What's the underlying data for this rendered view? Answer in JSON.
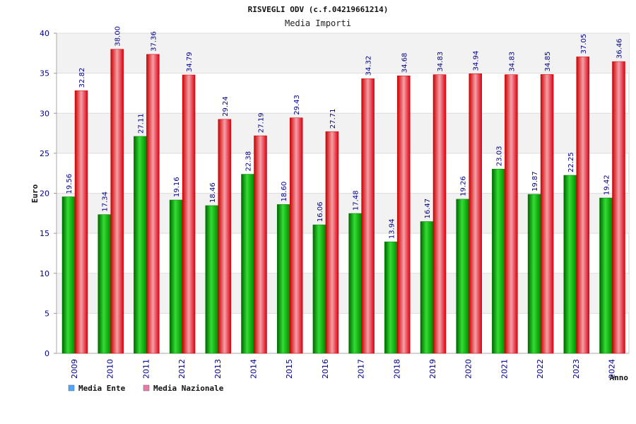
{
  "chart_data": {
    "type": "bar",
    "title": "RISVEGLI ODV (c.f.04219661214)",
    "subtitle": "Media Importi",
    "xlabel": "Anno",
    "ylabel": "Euro",
    "ylim": [
      0,
      40
    ],
    "yticks": [
      0,
      5,
      10,
      15,
      20,
      25,
      30,
      35,
      40
    ],
    "grid": true,
    "legend_position": "bottom-left",
    "categories": [
      "2009",
      "2010",
      "2011",
      "2012",
      "2013",
      "2014",
      "2015",
      "2016",
      "2017",
      "2018",
      "2019",
      "2020",
      "2021",
      "2022",
      "2023",
      "2024"
    ],
    "series": [
      {
        "name": "Media Ente",
        "color": "#00cc00",
        "legend_color": "#4da6ff",
        "values": [
          19.56,
          17.34,
          27.11,
          19.16,
          18.46,
          22.38,
          18.6,
          16.06,
          17.48,
          13.94,
          16.47,
          19.26,
          23.03,
          19.87,
          22.25,
          19.42
        ],
        "labels": [
          "19.56",
          "17.34",
          "27.11",
          "19.16",
          "18.46",
          "22.38",
          "18.60",
          "16.06",
          "17.48",
          "13.94",
          "16.47",
          "19.26",
          "23.03",
          "19.87",
          "22.25",
          "19.42"
        ]
      },
      {
        "name": "Media Nazionale",
        "color": "#ee1111",
        "legend_color": "#e87aa8",
        "values": [
          32.82,
          38.0,
          37.36,
          34.79,
          29.24,
          27.19,
          29.43,
          27.71,
          34.32,
          34.68,
          34.83,
          34.94,
          34.83,
          34.85,
          37.05,
          36.46
        ],
        "labels": [
          "32.82",
          "38.00",
          "37.36",
          "34.79",
          "29.24",
          "27.19",
          "29.43",
          "27.71",
          "34.32",
          "34.68",
          "34.83",
          "34.94",
          "34.83",
          "34.85",
          "37.05",
          "36.46"
        ]
      }
    ]
  }
}
